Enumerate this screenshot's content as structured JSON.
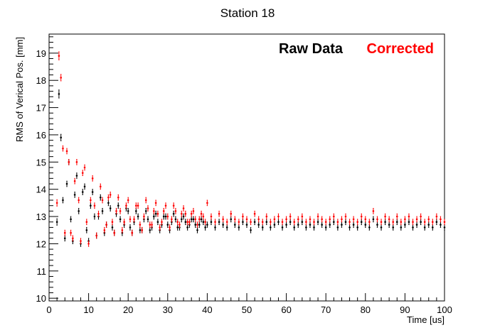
{
  "chart_data": {
    "type": "scatter",
    "title": "Station 18",
    "xlabel": "Time [us]",
    "ylabel": "RMS of Verical Pos. [mm]",
    "xlim": [
      0,
      100
    ],
    "ylim": [
      9.9,
      19.7
    ],
    "x_ticks": [
      0,
      10,
      20,
      30,
      40,
      50,
      60,
      70,
      80,
      90,
      100
    ],
    "y_ticks": [
      10,
      11,
      12,
      13,
      14,
      15,
      16,
      17,
      18,
      19
    ],
    "grid": false,
    "legend_position": "top-right",
    "error_bar_half_width": 0.12,
    "series": [
      {
        "name": "Raw Data",
        "color": "#000000",
        "x": [
          2,
          2.5,
          3,
          3.5,
          4,
          4.5,
          5,
          5.5,
          6,
          6.5,
          7,
          7.5,
          8,
          8.5,
          9,
          9.5,
          10,
          10.5,
          11,
          11.5,
          12,
          12.5,
          13,
          13.5,
          14,
          14.5,
          15,
          15.5,
          16,
          16.5,
          17,
          17.5,
          18,
          18.5,
          19,
          19.5,
          20,
          20.5,
          21,
          21.5,
          22,
          22.5,
          23,
          23.5,
          24,
          24.5,
          25,
          25.5,
          26,
          26.5,
          27,
          27.5,
          28,
          28.5,
          29,
          29.5,
          30,
          30.5,
          31,
          31.5,
          32,
          32.5,
          33,
          33.5,
          34,
          34.5,
          35,
          35.5,
          36,
          36.5,
          37,
          37.5,
          38,
          38.5,
          39,
          39.5,
          40,
          41,
          42,
          43,
          44,
          45,
          46,
          47,
          48,
          49,
          50,
          51,
          52,
          53,
          54,
          55,
          56,
          57,
          58,
          59,
          60,
          61,
          62,
          63,
          64,
          65,
          66,
          67,
          68,
          69,
          70,
          71,
          72,
          73,
          74,
          75,
          76,
          77,
          78,
          79,
          80,
          81,
          82,
          83,
          84,
          85,
          86,
          87,
          88,
          89,
          90,
          91,
          92,
          93,
          94,
          95,
          96,
          97,
          98,
          99,
          100
        ],
        "y": [
          12.8,
          17.5,
          15.9,
          13.6,
          12.2,
          14.2,
          15.0,
          12.9,
          12.1,
          13.8,
          14.5,
          13.2,
          12.0,
          13.9,
          14.1,
          12.5,
          12.1,
          13.4,
          13.9,
          13.0,
          12.3,
          13.0,
          13.7,
          13.2,
          12.4,
          12.7,
          13.5,
          13.3,
          12.6,
          12.4,
          13.1,
          13.4,
          12.9,
          12.4,
          12.7,
          13.3,
          13.2,
          12.6,
          12.4,
          12.8,
          13.2,
          13.0,
          12.5,
          12.5,
          12.9,
          13.2,
          12.9,
          12.5,
          12.6,
          13.0,
          13.1,
          12.8,
          12.5,
          12.7,
          13.0,
          13.0,
          12.7,
          12.5,
          12.8,
          13.1,
          12.9,
          12.6,
          12.6,
          12.9,
          13.0,
          12.8,
          12.6,
          12.7,
          12.9,
          12.9,
          12.7,
          12.5,
          12.7,
          12.9,
          12.8,
          12.6,
          12.7,
          12.8,
          12.6,
          12.8,
          12.7,
          12.6,
          12.9,
          12.7,
          12.6,
          12.8,
          12.7,
          12.5,
          12.8,
          12.7,
          12.6,
          12.8,
          12.6,
          12.7,
          12.8,
          12.6,
          12.7,
          12.8,
          12.6,
          12.7,
          12.8,
          12.6,
          12.7,
          12.6,
          12.8,
          12.7,
          12.6,
          12.7,
          12.8,
          12.6,
          12.7,
          12.8,
          12.6,
          12.7,
          12.6,
          12.8,
          12.7,
          12.6,
          12.9,
          12.7,
          12.6,
          12.8,
          12.7,
          12.6,
          12.8,
          12.6,
          12.7,
          12.8,
          12.6,
          12.7,
          12.8,
          12.6,
          12.7,
          12.6,
          12.8,
          12.7,
          12.6
        ],
        "err": [
          0.12,
          0.15,
          0.12,
          0.1,
          0.1,
          0.1,
          0.1,
          0.1,
          0.1,
          0.1,
          0.1,
          0.1,
          0.1,
          0.1,
          0.1,
          0.1,
          0.1,
          0.1,
          0.1,
          0.1,
          0.1,
          0.1,
          0.1,
          0.1,
          0.1,
          0.1,
          0.1,
          0.1,
          0.1,
          0.1,
          0.1,
          0.1,
          0.1,
          0.1,
          0.1,
          0.1,
          0.1,
          0.1,
          0.1,
          0.1,
          0.1,
          0.1,
          0.1,
          0.1,
          0.1,
          0.1,
          0.1,
          0.1,
          0.1,
          0.1,
          0.1,
          0.1,
          0.1,
          0.1,
          0.1,
          0.1,
          0.1,
          0.1,
          0.1,
          0.1,
          0.1,
          0.1,
          0.1,
          0.1,
          0.1,
          0.1,
          0.1,
          0.1,
          0.1,
          0.1,
          0.1,
          0.1,
          0.1,
          0.1,
          0.1,
          0.1,
          0.1,
          0.1,
          0.1,
          0.1,
          0.1,
          0.1,
          0.1,
          0.1,
          0.1,
          0.1,
          0.1,
          0.1,
          0.1,
          0.1,
          0.1,
          0.1,
          0.1,
          0.1,
          0.1,
          0.1,
          0.1,
          0.1,
          0.1,
          0.1,
          0.1,
          0.1,
          0.1,
          0.1,
          0.1,
          0.1,
          0.1,
          0.1,
          0.1,
          0.1,
          0.1,
          0.1,
          0.1,
          0.1,
          0.1,
          0.1,
          0.1,
          0.1,
          0.1,
          0.1,
          0.1,
          0.1,
          0.1,
          0.1,
          0.1,
          0.1,
          0.1,
          0.1,
          0.1,
          0.1,
          0.1,
          0.1,
          0.1,
          0.1,
          0.1,
          0.1,
          0.1
        ]
      },
      {
        "name": "Corrected",
        "color": "#ff0000",
        "x": [
          2,
          2.5,
          3,
          3.5,
          4,
          4.5,
          5,
          5.5,
          6,
          6.5,
          7,
          7.5,
          8,
          8.5,
          9,
          9.5,
          10,
          10.5,
          11,
          11.5,
          12,
          12.5,
          13,
          13.5,
          14,
          14.5,
          15,
          15.5,
          16,
          16.5,
          17,
          17.5,
          18,
          18.5,
          19,
          19.5,
          20,
          20.5,
          21,
          21.5,
          22,
          22.5,
          23,
          23.5,
          24,
          24.5,
          25,
          25.5,
          26,
          26.5,
          27,
          27.5,
          28,
          28.5,
          29,
          29.5,
          30,
          30.5,
          31,
          31.5,
          32,
          32.5,
          33,
          33.5,
          34,
          34.5,
          35,
          35.5,
          36,
          36.5,
          37,
          37.5,
          38,
          38.5,
          39,
          39.5,
          40,
          41,
          42,
          43,
          44,
          45,
          46,
          47,
          48,
          49,
          50,
          51,
          52,
          53,
          54,
          55,
          56,
          57,
          58,
          59,
          60,
          61,
          62,
          63,
          64,
          65,
          66,
          67,
          68,
          69,
          70,
          71,
          72,
          73,
          74,
          75,
          76,
          77,
          78,
          79,
          80,
          81,
          82,
          83,
          84,
          85,
          86,
          87,
          88,
          89,
          90,
          91,
          92,
          93,
          94,
          95,
          96,
          97,
          98,
          99,
          100
        ],
        "y": [
          13.5,
          18.9,
          18.1,
          15.5,
          12.4,
          15.4,
          15.0,
          12.4,
          12.2,
          14.3,
          15.0,
          13.6,
          12.1,
          14.6,
          14.8,
          12.8,
          12.0,
          13.6,
          14.4,
          13.4,
          12.3,
          13.1,
          14.1,
          13.6,
          12.5,
          12.7,
          13.7,
          13.8,
          12.8,
          12.4,
          13.2,
          13.7,
          13.2,
          12.5,
          12.8,
          13.4,
          13.6,
          12.9,
          12.4,
          12.9,
          13.4,
          13.4,
          12.7,
          12.5,
          13.0,
          13.6,
          13.3,
          12.7,
          12.7,
          13.2,
          13.5,
          13.1,
          12.6,
          12.8,
          13.2,
          13.4,
          13.0,
          12.6,
          12.9,
          13.4,
          13.2,
          12.8,
          12.7,
          13.1,
          13.3,
          13.1,
          12.8,
          12.8,
          13.1,
          13.2,
          12.9,
          12.7,
          12.9,
          13.1,
          13.0,
          12.8,
          13.5,
          13.0,
          12.8,
          13.1,
          12.9,
          12.8,
          13.1,
          12.9,
          12.8,
          13.0,
          12.9,
          12.8,
          13.1,
          12.9,
          12.8,
          13.0,
          12.8,
          12.9,
          13.0,
          12.8,
          12.9,
          13.0,
          12.8,
          12.9,
          13.0,
          12.8,
          12.9,
          12.8,
          13.0,
          12.9,
          12.8,
          12.9,
          13.0,
          12.8,
          12.9,
          13.0,
          12.8,
          12.9,
          12.8,
          13.0,
          12.9,
          12.8,
          13.2,
          12.9,
          12.8,
          13.0,
          12.9,
          12.8,
          13.0,
          12.8,
          12.9,
          13.0,
          12.8,
          12.9,
          13.0,
          12.8,
          12.9,
          12.8,
          13.0,
          12.9,
          12.8
        ],
        "err": [
          0.12,
          0.15,
          0.12,
          0.1,
          0.1,
          0.1,
          0.1,
          0.1,
          0.1,
          0.1,
          0.1,
          0.1,
          0.1,
          0.1,
          0.1,
          0.1,
          0.1,
          0.1,
          0.1,
          0.1,
          0.1,
          0.1,
          0.1,
          0.1,
          0.1,
          0.1,
          0.1,
          0.1,
          0.1,
          0.1,
          0.1,
          0.1,
          0.1,
          0.1,
          0.1,
          0.1,
          0.1,
          0.1,
          0.1,
          0.1,
          0.1,
          0.1,
          0.1,
          0.1,
          0.1,
          0.1,
          0.1,
          0.1,
          0.1,
          0.1,
          0.1,
          0.1,
          0.1,
          0.1,
          0.1,
          0.1,
          0.1,
          0.1,
          0.1,
          0.1,
          0.1,
          0.1,
          0.1,
          0.1,
          0.1,
          0.1,
          0.1,
          0.1,
          0.1,
          0.1,
          0.1,
          0.1,
          0.1,
          0.1,
          0.1,
          0.1,
          0.1,
          0.1,
          0.1,
          0.1,
          0.1,
          0.1,
          0.1,
          0.1,
          0.1,
          0.1,
          0.1,
          0.1,
          0.1,
          0.1,
          0.1,
          0.1,
          0.1,
          0.1,
          0.1,
          0.1,
          0.1,
          0.1,
          0.1,
          0.1,
          0.1,
          0.1,
          0.1,
          0.1,
          0.1,
          0.1,
          0.1,
          0.1,
          0.1,
          0.1,
          0.1,
          0.1,
          0.1,
          0.1,
          0.1,
          0.1,
          0.1,
          0.1,
          0.1,
          0.1,
          0.1,
          0.1,
          0.1,
          0.1,
          0.1,
          0.1,
          0.1,
          0.1,
          0.1,
          0.1,
          0.1,
          0.1,
          0.1,
          0.1,
          0.1,
          0.1,
          0.1
        ]
      }
    ],
    "legend": [
      {
        "label": "Raw Data",
        "color": "#000000"
      },
      {
        "label": "Corrected",
        "color": "#ff0000"
      }
    ]
  }
}
